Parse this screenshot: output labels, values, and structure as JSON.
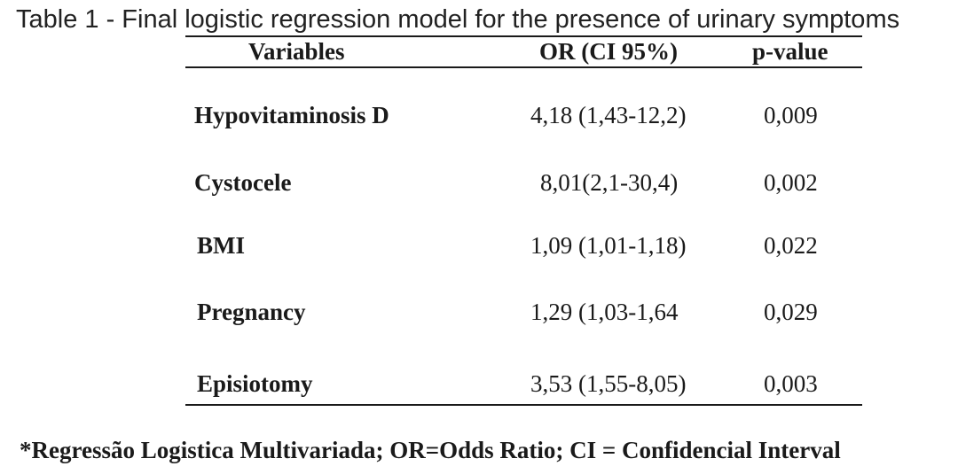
{
  "caption": "Table 1 - Final logistic regression model for the presence of urinary symptoms",
  "table": {
    "headers": {
      "variables": "Variables",
      "or": "OR (CI 95%)",
      "p": "p-value"
    },
    "rows": [
      {
        "variable": "Hypovitaminosis D",
        "or": "4,18 (1,43-12,2)",
        "p": "0,009"
      },
      {
        "variable": "Cystocele",
        "or": "8,01(2,1-30,4)",
        "p": "0,002"
      },
      {
        "variable": "BMI",
        "or": "1,09 (1,01-1,18)",
        "p": "0,022"
      },
      {
        "variable": "Pregnancy",
        "or": "1,29 (1,03-1,64",
        "p": "0,029"
      },
      {
        "variable": "Episiotomy",
        "or": "3,53 (1,55-8,05)",
        "p": "0,003"
      }
    ]
  },
  "footnote": "*Regressão Logistica Multivariada; OR=Odds Ratio; CI = Confidencial Interval"
}
